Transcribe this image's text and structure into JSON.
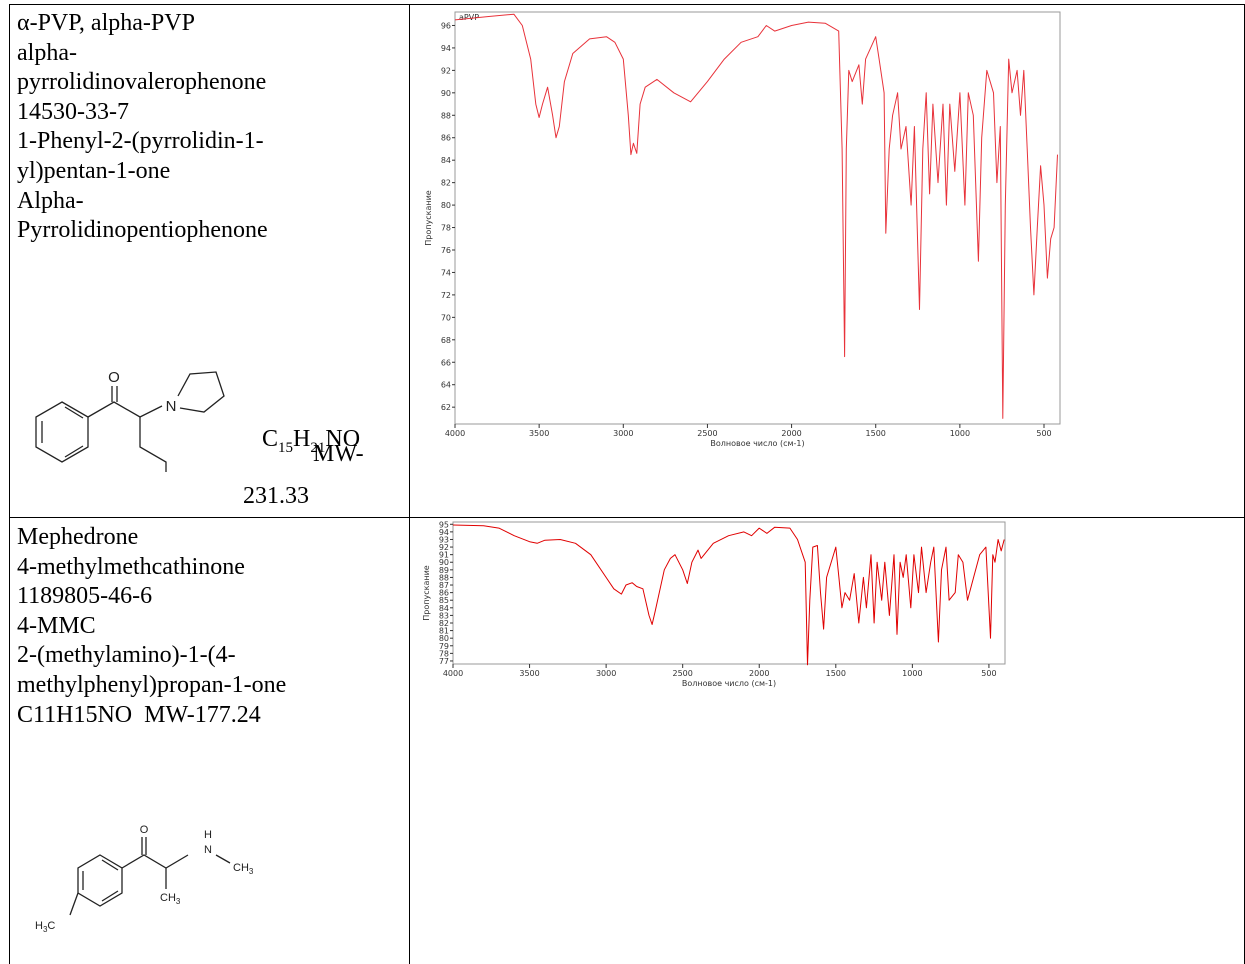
{
  "table": {
    "rows": [
      {
        "lines": [
          "α-PVP, alpha-PVP",
          "alpha-",
          "pyrrolidinovalerophenone",
          "14530-33-7",
          "1-Phenyl-2-(pyrrolidin-1-",
          "yl)pentan-1-one",
          "Alpha-",
          "Pyrrolidinopentiophenone"
        ],
        "atoms": [
          "O",
          "N"
        ],
        "formula": [
          "C",
          "15",
          "H",
          "21",
          "NO"
        ],
        "mw_label": "MW-",
        "mw_value": "231.33",
        "chart_data": {
          "type": "line",
          "title": "aPVP",
          "x_label": "Волновое число (см-1)",
          "y_label": "Пропускание",
          "xlim": [
            4000,
            405
          ],
          "xticks": [
            4000,
            3500,
            3000,
            2500,
            2000,
            1500,
            1000,
            500
          ],
          "ylim": [
            60.5,
            97.2
          ],
          "yticks": [
            62,
            64,
            66,
            68,
            70,
            72,
            74,
            76,
            78,
            80,
            82,
            84,
            86,
            88,
            90,
            92,
            94,
            96
          ],
          "color": "#e8323a",
          "x": [
            4000,
            3800,
            3650,
            3600,
            3550,
            3520,
            3500,
            3480,
            3450,
            3420,
            3400,
            3380,
            3350,
            3300,
            3200,
            3100,
            3050,
            3000,
            2970,
            2955,
            2940,
            2920,
            2900,
            2870,
            2800,
            2700,
            2600,
            2500,
            2400,
            2300,
            2200,
            2150,
            2100,
            2000,
            1900,
            1800,
            1720,
            1700,
            1685,
            1675,
            1660,
            1640,
            1600,
            1580,
            1560,
            1500,
            1480,
            1450,
            1440,
            1420,
            1400,
            1370,
            1350,
            1320,
            1290,
            1270,
            1240,
            1220,
            1200,
            1180,
            1160,
            1130,
            1100,
            1080,
            1060,
            1030,
            1000,
            970,
            950,
            920,
            890,
            870,
            840,
            800,
            780,
            760,
            745,
            730,
            710,
            690,
            660,
            640,
            620,
            600,
            580,
            560,
            540,
            520,
            500,
            480,
            460,
            440,
            420
          ],
          "values": [
            96.5,
            96.8,
            97,
            96,
            93,
            89,
            87.8,
            89,
            90.5,
            88,
            86,
            87,
            91,
            93.5,
            94.8,
            95,
            94.5,
            93,
            88,
            84.5,
            85.5,
            84.6,
            89,
            90.5,
            91.2,
            90,
            89.2,
            91,
            93,
            94.5,
            95,
            96,
            95.5,
            96,
            96.3,
            96.2,
            95.5,
            85,
            66.5,
            85,
            92,
            91,
            92.5,
            89,
            93,
            95,
            93,
            90,
            77.5,
            85,
            88,
            90,
            85,
            87,
            80,
            87,
            70.7,
            85,
            90,
            81,
            89,
            82,
            89,
            80,
            89,
            83,
            90,
            80,
            90,
            88,
            75,
            86,
            92,
            90,
            82,
            87,
            61,
            80,
            93,
            90,
            92,
            88,
            92,
            85,
            78,
            72,
            78,
            83.5,
            80,
            73.5,
            77,
            78,
            84.5
          ]
        }
      },
      {
        "lines": [
          "Mephedrone",
          "4-methylmethcathinone",
          "1189805-46-6",
          "4-MMC",
          "2-(methylamino)-1-(4-",
          "methylphenyl)propan-1-one",
          "C11H15NO  MW-177.24"
        ],
        "atoms": [
          "O",
          "H",
          "N",
          "CH3",
          "CH3",
          "H3C"
        ],
        "chart_data": {
          "type": "line",
          "x_label": "Волновое число (см-1)",
          "y_label": "Пропускание",
          "xlim": [
            4000,
            395
          ],
          "xticks": [
            4000,
            3500,
            3000,
            2500,
            2000,
            1500,
            1000,
            500
          ],
          "ylim": [
            76.6,
            95.3
          ],
          "yticks": [
            77,
            78,
            79,
            80,
            81,
            82,
            83,
            84,
            85,
            86,
            87,
            88,
            89,
            90,
            91,
            92,
            93,
            94,
            95
          ],
          "color": "#e00000",
          "x": [
            4000,
            3800,
            3700,
            3600,
            3500,
            3450,
            3400,
            3300,
            3200,
            3100,
            3000,
            2950,
            2900,
            2870,
            2830,
            2800,
            2760,
            2720,
            2700,
            2680,
            2620,
            2580,
            2550,
            2500,
            2470,
            2440,
            2400,
            2380,
            2300,
            2200,
            2100,
            2050,
            2000,
            1950,
            1900,
            1800,
            1750,
            1700,
            1685,
            1670,
            1650,
            1620,
            1600,
            1580,
            1560,
            1500,
            1480,
            1460,
            1440,
            1410,
            1380,
            1350,
            1320,
            1300,
            1270,
            1250,
            1230,
            1200,
            1180,
            1150,
            1120,
            1100,
            1080,
            1060,
            1040,
            1010,
            990,
            960,
            940,
            910,
            880,
            860,
            830,
            810,
            780,
            760,
            720,
            700,
            670,
            640,
            600,
            560,
            520,
            490,
            475,
            460,
            440,
            420,
            400
          ],
          "values": [
            94.9,
            94.8,
            94.5,
            93.5,
            92.7,
            92.5,
            92.9,
            93,
            92.5,
            91,
            88,
            86.5,
            85.8,
            87,
            87.3,
            86.8,
            86.5,
            83,
            81.8,
            83.5,
            89,
            90.5,
            91,
            89,
            87.2,
            90,
            91.6,
            90.5,
            92.5,
            93.5,
            94,
            93.5,
            94.5,
            93.8,
            94.6,
            94.5,
            93,
            90,
            76.5,
            85,
            92,
            92.2,
            86,
            81.2,
            88,
            92,
            88,
            84,
            86,
            85,
            88.5,
            82,
            88,
            84,
            91,
            82,
            90,
            85,
            90,
            83,
            91,
            80.5,
            90,
            88,
            91,
            84,
            91,
            86,
            92,
            86,
            90,
            92,
            79.5,
            89,
            92,
            85,
            86,
            91,
            90,
            85,
            88,
            91,
            92,
            80,
            91,
            90,
            93,
            91.5,
            93
          ]
        }
      }
    ]
  }
}
